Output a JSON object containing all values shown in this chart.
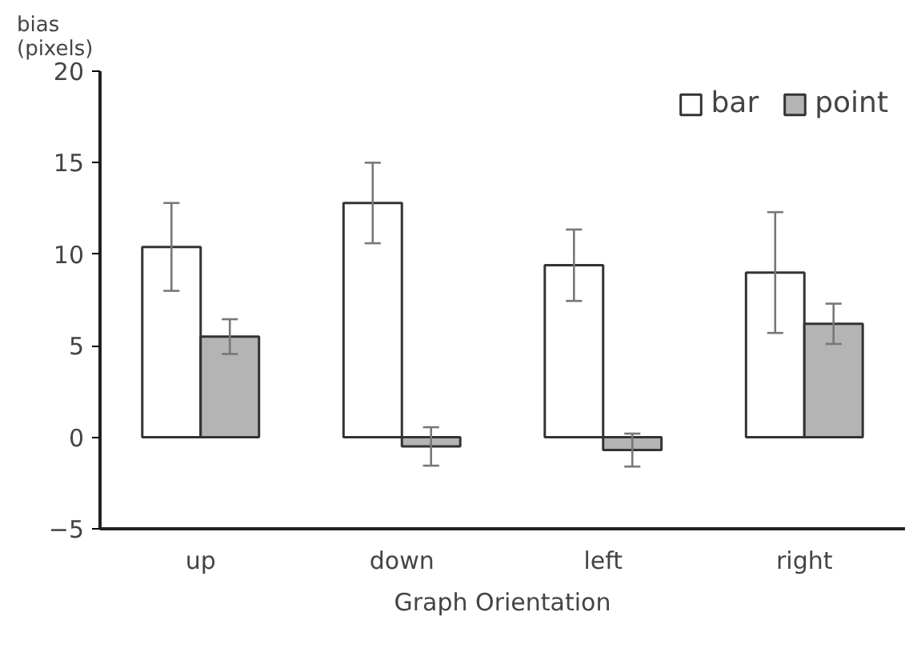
{
  "chart_data": {
    "type": "bar",
    "xlabel": "Graph Orientation",
    "ylabel": "bias\n(pixels)",
    "categories": [
      "up",
      "down",
      "left",
      "right"
    ],
    "series": [
      {
        "name": "bar",
        "color": "#ffffff",
        "values": [
          10.4,
          12.8,
          9.4,
          9.0
        ],
        "errors": [
          2.4,
          2.2,
          1.95,
          3.3
        ]
      },
      {
        "name": "point",
        "color": "#b4b4b4",
        "values": [
          5.5,
          -0.5,
          -0.7,
          6.2
        ],
        "errors": [
          0.95,
          1.05,
          0.9,
          1.1
        ]
      }
    ],
    "ylim": [
      -5,
      20
    ],
    "yticks": [
      -5,
      0,
      5,
      10,
      15,
      20
    ],
    "grid": false,
    "legend": "top right"
  }
}
